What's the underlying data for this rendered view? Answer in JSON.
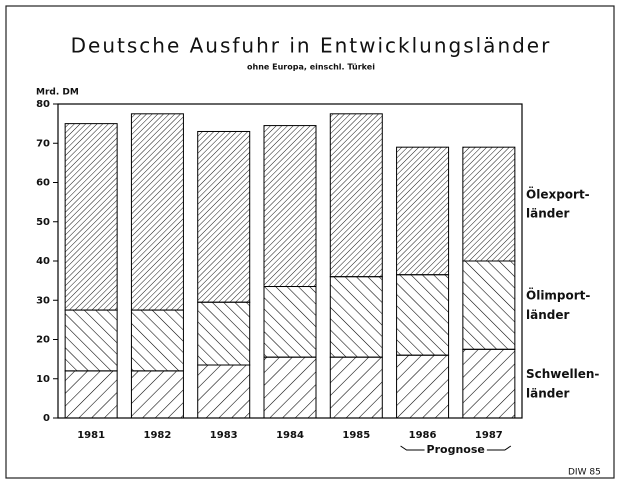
{
  "chart_data": {
    "type": "stacked_bar",
    "title": "Deutsche Ausfuhr in Entwicklungsländer",
    "subtitle": "ohne Europa, einschl. Türkei",
    "y_label": "Mrd. DM",
    "categories": [
      "1981",
      "1982",
      "1983",
      "1984",
      "1985",
      "1986",
      "1987"
    ],
    "series": [
      {
        "name": "Schwellen-\nländer",
        "color": "#000000",
        "values": [
          12,
          12,
          13.5,
          15.5,
          15.5,
          16,
          17.5
        ]
      },
      {
        "name": "Ölimport-\nländer",
        "color": "#000000",
        "values": [
          15.5,
          15.5,
          16,
          18,
          20.5,
          20.5,
          22.5
        ]
      },
      {
        "name": "Ölexport-\nländer",
        "color": "#000000",
        "values": [
          47.5,
          50,
          43.5,
          41,
          41.5,
          32.5,
          29
        ]
      }
    ],
    "ylim": [
      0,
      80
    ],
    "yticks": [
      0,
      10,
      20,
      30,
      40,
      50,
      60,
      70,
      80
    ],
    "annotation": "Prognose",
    "source": "DIW 85"
  }
}
